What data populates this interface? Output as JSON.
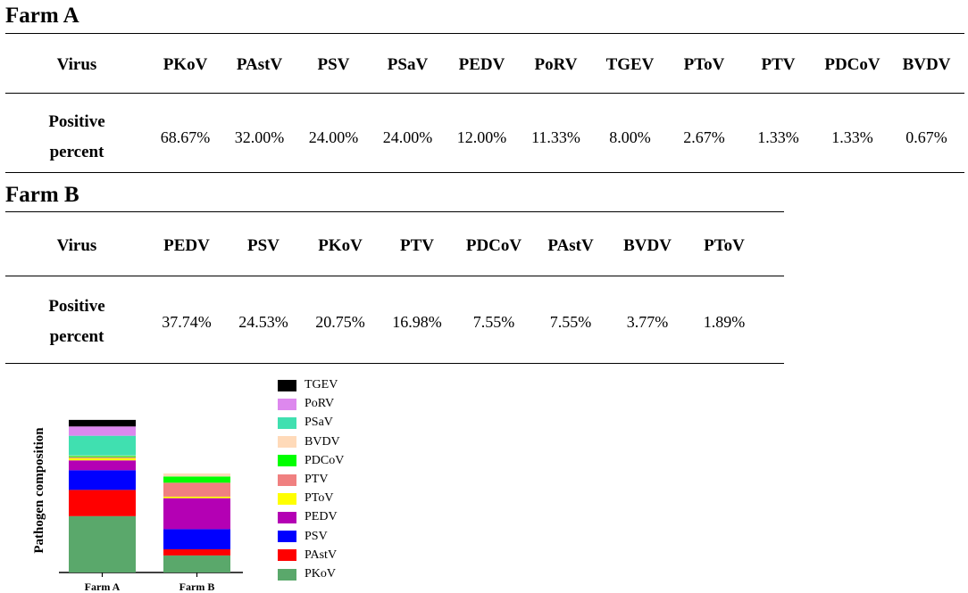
{
  "farm_a": {
    "title": "Farm A",
    "header_label": "Virus",
    "row_label_line1": "Positive",
    "row_label_line2": "percent",
    "viruses": [
      "PKoV",
      "PAstV",
      "PSV",
      "PSaV",
      "PEDV",
      "PoRV",
      "TGEV",
      "PToV",
      "PTV",
      "PDCoV",
      "BVDV"
    ],
    "percents": [
      "68.67%",
      "32.00%",
      "24.00%",
      "24.00%",
      "12.00%",
      "11.33%",
      "8.00%",
      "2.67%",
      "1.33%",
      "1.33%",
      "0.67%"
    ]
  },
  "farm_b": {
    "title": "Farm B",
    "header_label": "Virus",
    "row_label_line1": "Positive",
    "row_label_line2": "percent",
    "viruses": [
      "PEDV",
      "PSV",
      "PKoV",
      "PTV",
      "PDCoV",
      "PAstV",
      "BVDV",
      "PToV"
    ],
    "percents": [
      "37.74%",
      "24.53%",
      "20.75%",
      "16.98%",
      "7.55%",
      "7.55%",
      "3.77%",
      "1.89%"
    ]
  },
  "chart_data": {
    "type": "bar",
    "stacked": true,
    "categories": [
      "Farm A",
      "Farm B"
    ],
    "ylabel": "Pathogen composition",
    "xlabel": "",
    "legend_position": "right",
    "series": [
      {
        "name": "PKoV",
        "color": "#5aa86b",
        "values": [
          68.67,
          20.75
        ]
      },
      {
        "name": "PAstV",
        "color": "#ff0000",
        "values": [
          32.0,
          7.55
        ]
      },
      {
        "name": "PSV",
        "color": "#0000ff",
        "values": [
          24.0,
          24.53
        ]
      },
      {
        "name": "PEDV",
        "color": "#b400b4",
        "values": [
          12.0,
          37.74
        ]
      },
      {
        "name": "PToV",
        "color": "#ffff00",
        "values": [
          2.67,
          1.89
        ]
      },
      {
        "name": "PTV",
        "color": "#f08080",
        "values": [
          1.33,
          16.98
        ]
      },
      {
        "name": "PDCoV",
        "color": "#00ff00",
        "values": [
          1.33,
          7.55
        ]
      },
      {
        "name": "BVDV",
        "color": "#ffdab9",
        "values": [
          0.67,
          3.77
        ]
      },
      {
        "name": "PSaV",
        "color": "#40e0b0",
        "values": [
          24.0,
          0
        ]
      },
      {
        "name": "PoRV",
        "color": "#dd88ee",
        "values": [
          11.33,
          0
        ]
      },
      {
        "name": "TGEV",
        "color": "#000000",
        "values": [
          8.0,
          0
        ]
      }
    ]
  }
}
